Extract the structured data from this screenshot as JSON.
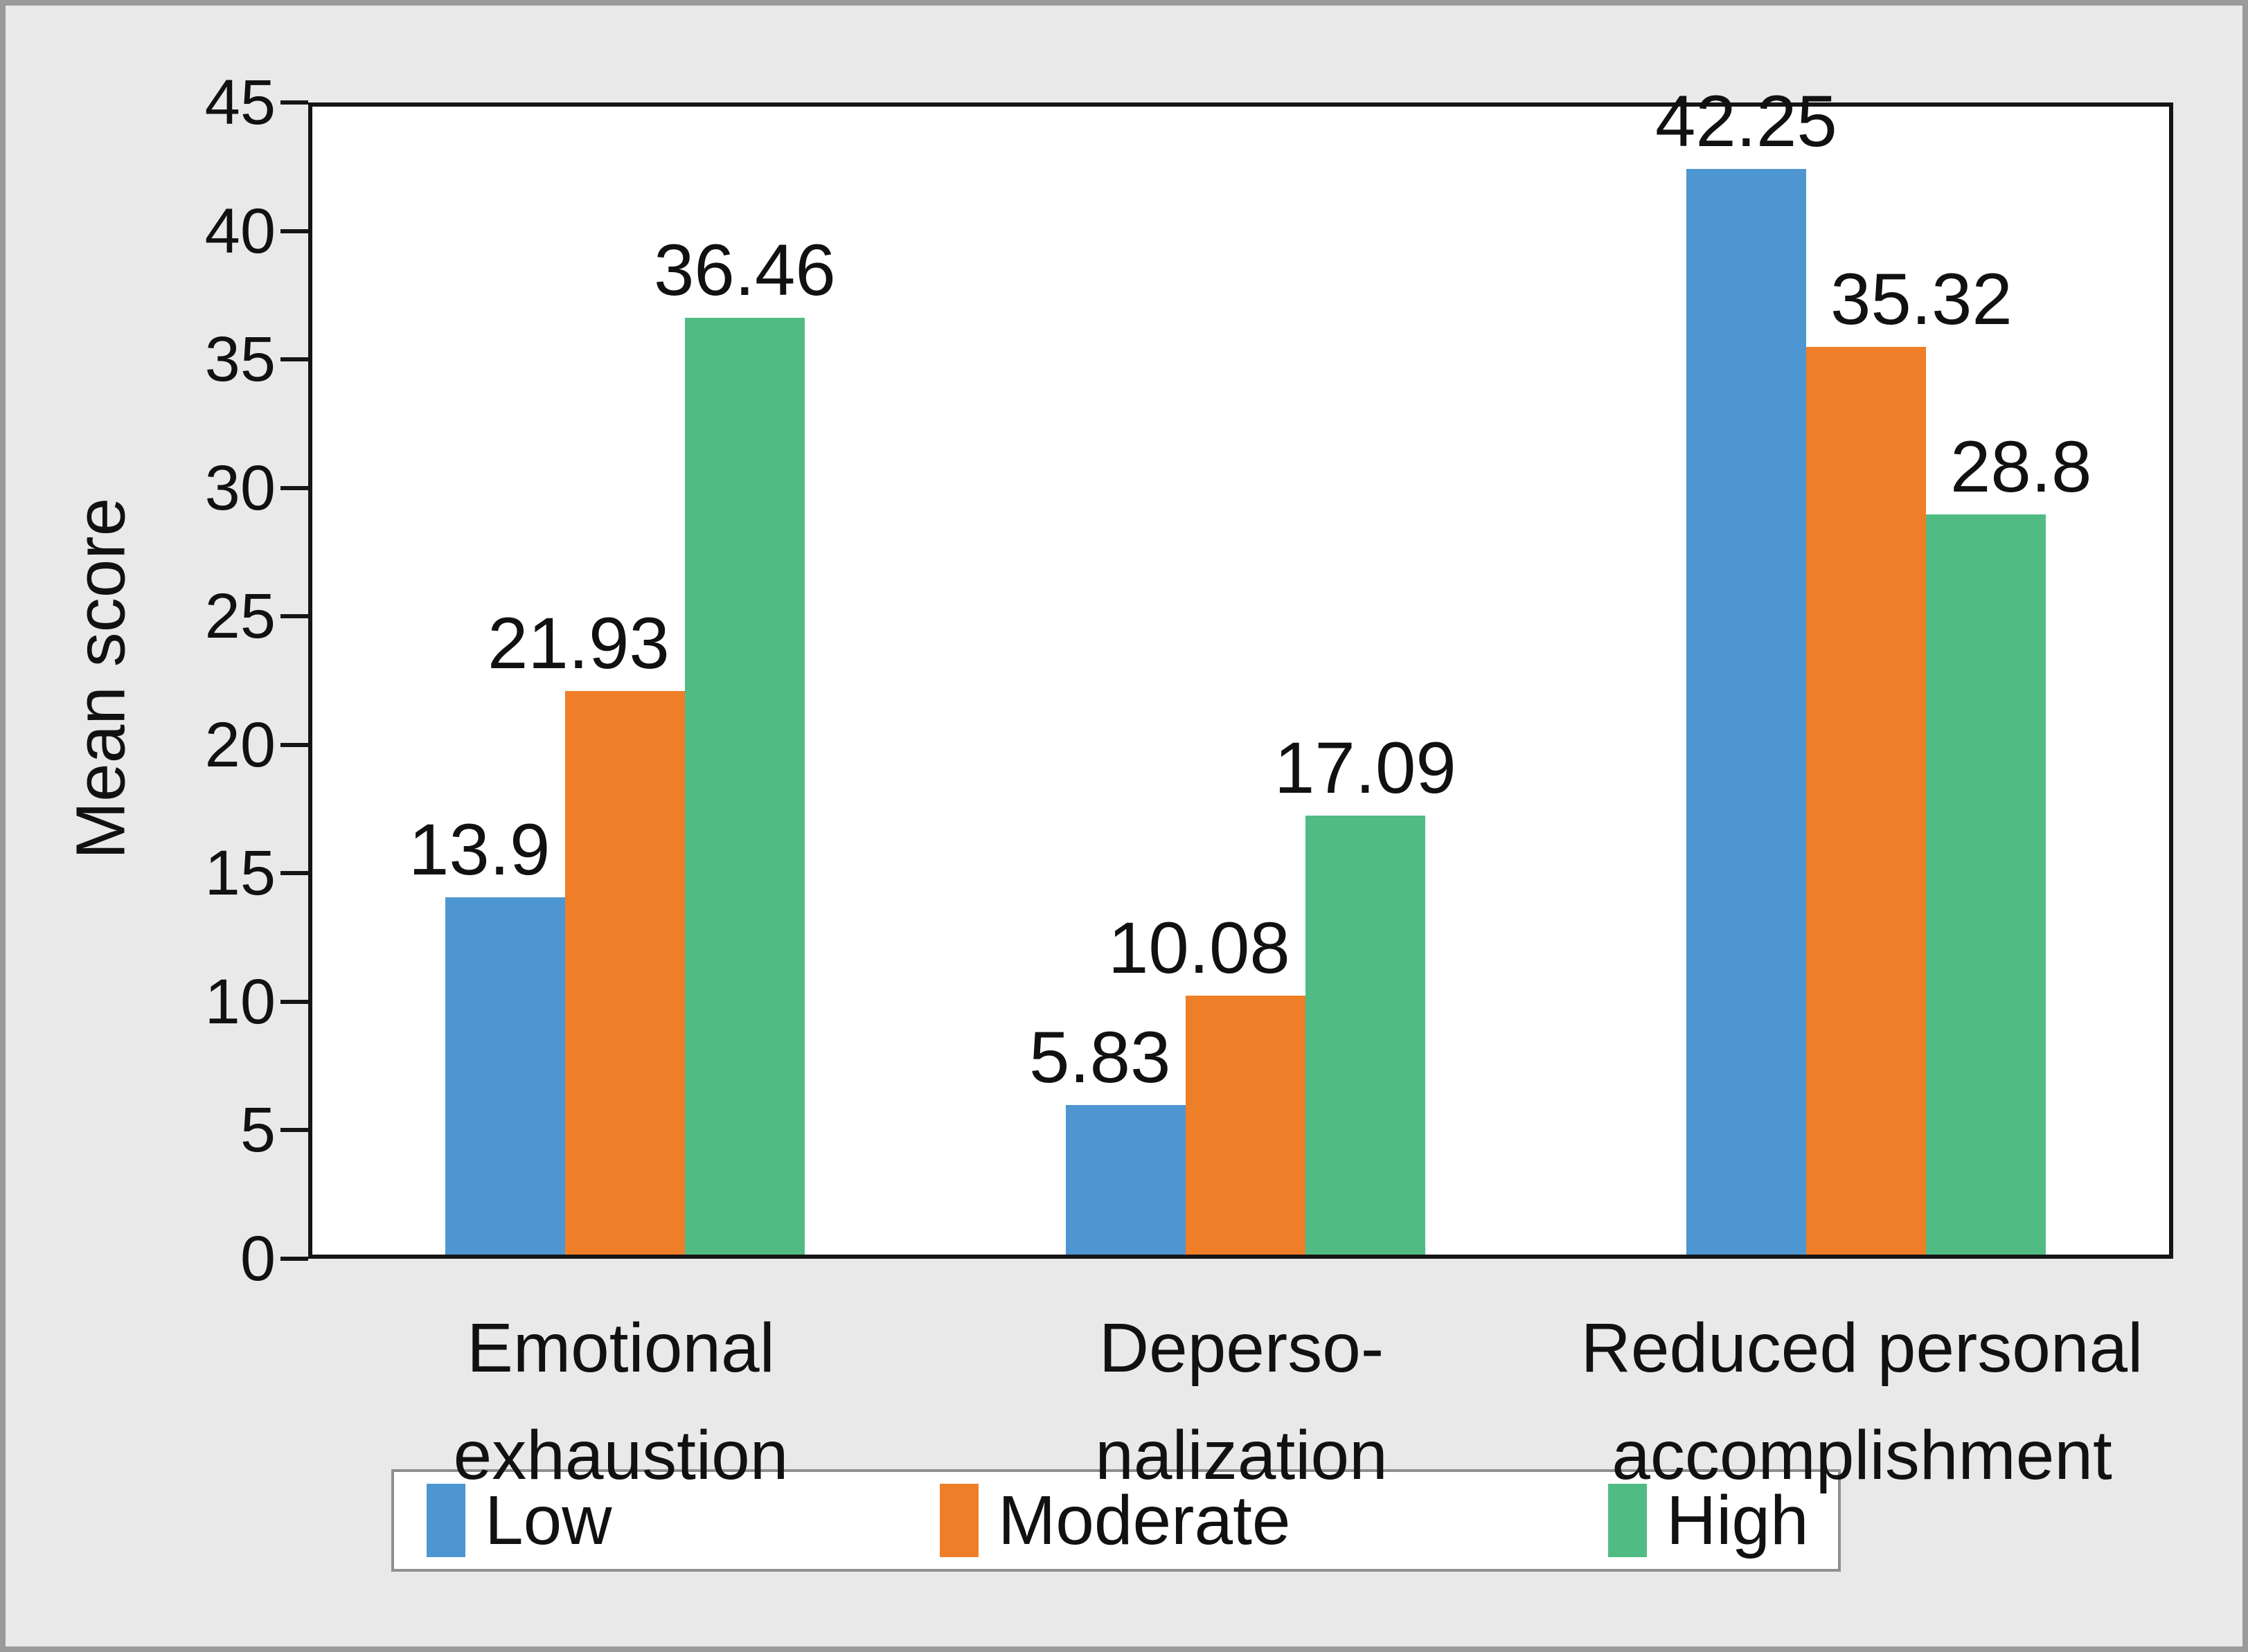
{
  "figure": {
    "background_color": "#E9E9E9",
    "outer_border_color": "#9A9A9A",
    "plot_background": "#FFFFFF",
    "axis_frame_color": "#151515",
    "text_color": "#111111"
  },
  "chart_data": {
    "type": "bar",
    "title": "",
    "xlabel": "",
    "ylabel": "Mean score",
    "ylim": [
      0,
      45
    ],
    "yticks": [
      0,
      5,
      10,
      15,
      20,
      25,
      30,
      35,
      40,
      45
    ],
    "grid": false,
    "legend_position": "bottom",
    "categories": [
      "Emotional exhaustion",
      "Depersonalization",
      "Reduced personal accomplishment"
    ],
    "category_lines": [
      [
        "Emotional",
        "exhaustion"
      ],
      [
        "Deperso-",
        "nalization"
      ],
      [
        "Reduced personal",
        "accomplishment"
      ]
    ],
    "series": [
      {
        "name": "Low",
        "color": "#4E96D2",
        "values": [
          13.9,
          5.83,
          42.25
        ],
        "labels": [
          "13.9",
          "5.83",
          "42.25"
        ]
      },
      {
        "name": "Moderate",
        "color": "#EF7E28",
        "values": [
          21.93,
          10.08,
          35.32
        ],
        "labels": [
          "21.93",
          "10.08",
          "35.32"
        ]
      },
      {
        "name": "High",
        "color": "#50BC84",
        "values": [
          36.46,
          17.09,
          28.8
        ],
        "labels": [
          "36.46",
          "17.09",
          "28.8"
        ]
      }
    ]
  },
  "legend": {
    "items": [
      {
        "label": "Low",
        "color": "#4E96D2"
      },
      {
        "label": "Moderate",
        "color": "#EF7E28"
      },
      {
        "label": "High",
        "color": "#50BC84"
      }
    ]
  }
}
